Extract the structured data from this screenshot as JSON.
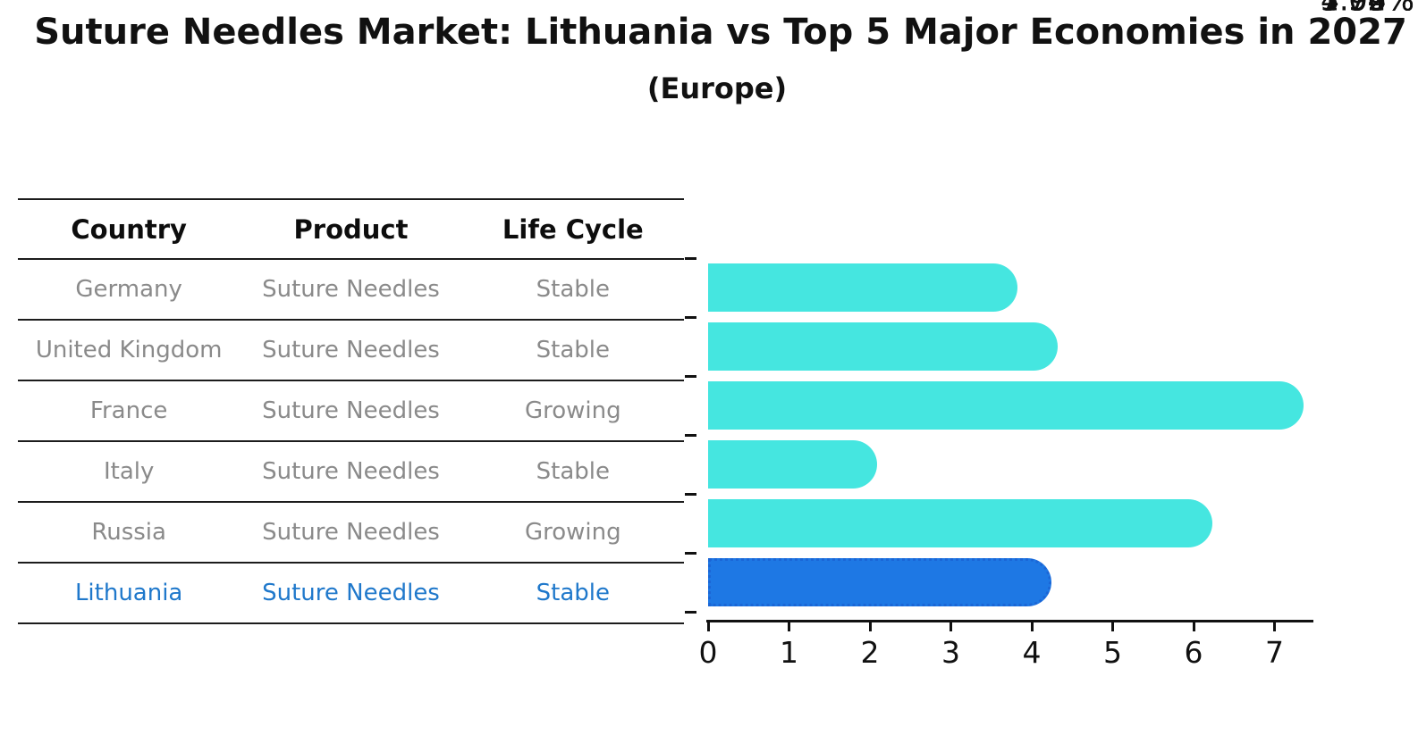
{
  "title": "Suture Needles Market: Lithuania vs Top 5 Major Economies in 2027",
  "subtitle": "(Europe)",
  "table": {
    "headers": [
      "Country",
      "Product",
      "Life Cycle"
    ],
    "rows": [
      {
        "country": "Germany",
        "product": "Suture Needles",
        "life_cycle": "Stable"
      },
      {
        "country": "United Kingdom",
        "product": "Suture Needles",
        "life_cycle": "Stable"
      },
      {
        "country": "France",
        "product": "Suture Needles",
        "life_cycle": "Growing"
      },
      {
        "country": "Italy",
        "product": "Suture Needles",
        "life_cycle": "Stable"
      },
      {
        "country": "Russia",
        "product": "Suture Needles",
        "life_cycle": "Growing"
      },
      {
        "country": "Lithuania",
        "product": "Suture Needles",
        "life_cycle": "Stable"
      }
    ]
  },
  "chart_data": {
    "type": "bar",
    "orientation": "horizontal",
    "title": "Suture Needles Market: Lithuania vs Top 5 Major Economies in 2027 (Europe)",
    "categories": [
      "Germany",
      "United Kingdom",
      "France",
      "Italy",
      "Russia",
      "Lithuania"
    ],
    "values": [
      3.53,
      4.02,
      7.06,
      1.79,
      5.93,
      3.94
    ],
    "value_labels": [
      "3.53%",
      "4.02%",
      "7.06%",
      "1.79%",
      "5.93%",
      "3.94%"
    ],
    "xlabel": "",
    "ylabel": "",
    "xlim": [
      0,
      7.5
    ],
    "xticks": [
      "0",
      "1",
      "2",
      "3",
      "4",
      "5",
      "6",
      "7"
    ],
    "grid": false,
    "legend": "none",
    "highlight_category": "Lithuania",
    "colors": {
      "bar_default": "#45e6e0",
      "bar_highlight": "#1e78e4",
      "bar_highlight_border": "#1b66d6",
      "table_text_muted": "#8a8a8a",
      "table_text_highlight": "#1f78cb",
      "axis": "#111111"
    }
  }
}
